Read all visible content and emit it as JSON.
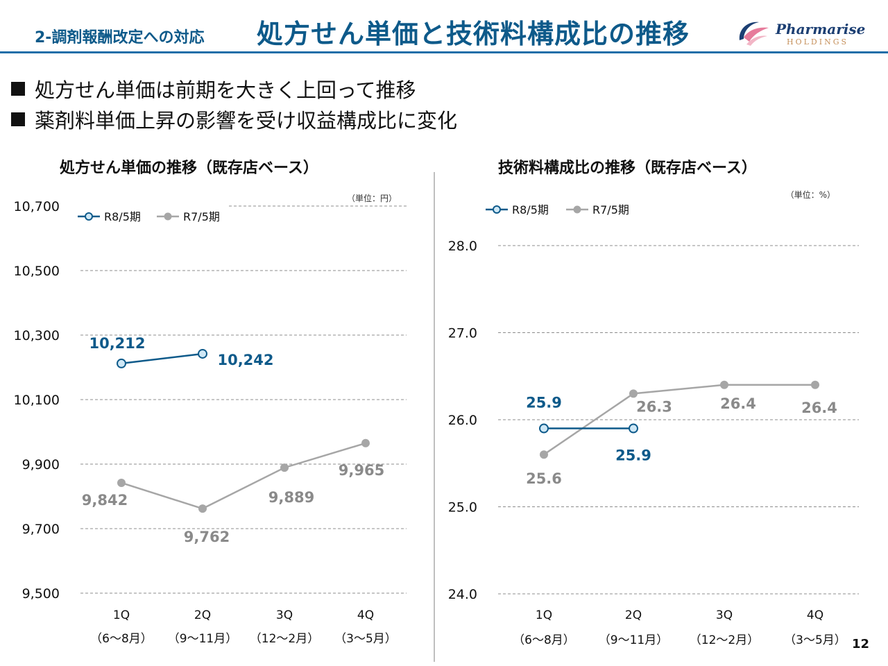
{
  "header": {
    "section_label": "2-調剤報酬改定への対応",
    "title": "処方せん単価と技術料構成比の推移",
    "logo_name": "Pharmarise",
    "logo_sub": "HOLDINGS"
  },
  "bullets": [
    "処方せん単価は前期を大きく上回って推移",
    "薬剤料単価上昇の影響を受け収益構成比に変化"
  ],
  "colors": {
    "current": "#0e5a8a",
    "previous": "#a6a6a6",
    "current_label": "#0e5a8a",
    "previous_label": "#8a8a8a",
    "marker_fill": "#cfe8f6"
  },
  "page_number": "12",
  "chart_data": [
    {
      "type": "line",
      "title": "処方せん単価の推移（既存店ベース）",
      "unit": "（単位：円）",
      "categories": [
        "1Q",
        "2Q",
        "3Q",
        "4Q"
      ],
      "category_subs": [
        "（6〜8月）",
        "（9〜11月）",
        "（12〜2月）",
        "（3〜5月）"
      ],
      "ylim": [
        9500,
        10700
      ],
      "yticks": [
        9500,
        9700,
        9900,
        10100,
        10300,
        10500,
        10700
      ],
      "ytick_labels": [
        "9,500",
        "9,700",
        "9,900",
        "10,100",
        "10,300",
        "10,500",
        "10,700"
      ],
      "series": [
        {
          "name": "R8/5期",
          "values": [
            10212,
            10242,
            null,
            null
          ],
          "labels": [
            "10,212",
            "10,242",
            "",
            ""
          ]
        },
        {
          "name": "R7/5期",
          "values": [
            9842,
            9762,
            9889,
            9965
          ],
          "labels": [
            "9,842",
            "9,762",
            "9,889",
            "9,965"
          ]
        }
      ]
    },
    {
      "type": "line",
      "title": "技術料構成比の推移（既存店ベース）",
      "unit": "（単位：%）",
      "categories": [
        "1Q",
        "2Q",
        "3Q",
        "4Q"
      ],
      "category_subs": [
        "（6〜8月）",
        "（9〜11月）",
        "（12〜2月）",
        "（3〜5月）"
      ],
      "ylim": [
        24.0,
        28.0
      ],
      "yticks": [
        24.0,
        25.0,
        26.0,
        27.0,
        28.0
      ],
      "ytick_labels": [
        "24.0",
        "25.0",
        "26.0",
        "27.0",
        "28.0"
      ],
      "series": [
        {
          "name": "R8/5期",
          "values": [
            25.9,
            25.9,
            null,
            null
          ],
          "labels": [
            "25.9",
            "25.9",
            "",
            ""
          ]
        },
        {
          "name": "R7/5期",
          "values": [
            25.6,
            26.3,
            26.4,
            26.4
          ],
          "labels": [
            "25.6",
            "26.3",
            "26.4",
            "26.4"
          ]
        }
      ]
    }
  ]
}
